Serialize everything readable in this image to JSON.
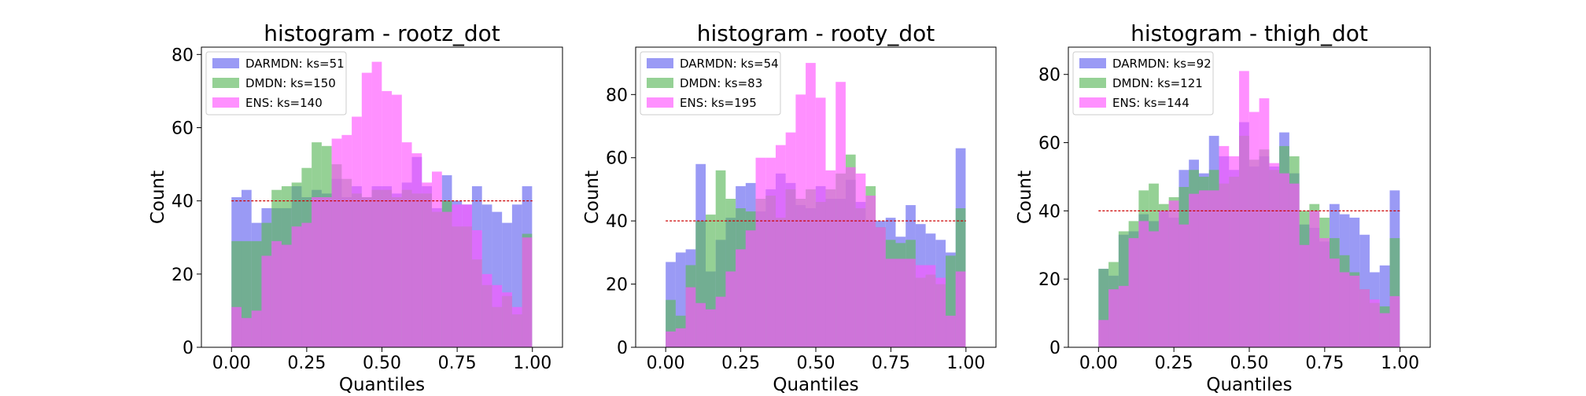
{
  "chart_data": [
    {
      "type": "histogram",
      "title": "histogram - rootz_dot",
      "xlabel": "Quantiles",
      "ylabel": "Count",
      "xlim": [
        -0.1,
        1.1
      ],
      "ylim": [
        0,
        82
      ],
      "xticks": [
        "0.00",
        "0.25",
        "0.50",
        "0.75",
        "1.00"
      ],
      "yticks": [
        "0",
        "20",
        "40",
        "60",
        "80"
      ],
      "legend_position": "upper-left",
      "reference_line": 40,
      "bin_width": 0.0333,
      "series": [
        {
          "name": "DARMDN: ks=51",
          "color": "#6464f0",
          "values": [
            41,
            43,
            34,
            38,
            38,
            38,
            44,
            41,
            43,
            42,
            46,
            41,
            44,
            41,
            44,
            44,
            42,
            45,
            52,
            44,
            38,
            47,
            40,
            39,
            44,
            39,
            37,
            34,
            39,
            44
          ]
        },
        {
          "name": "DMDN: ks=150",
          "color": "#5cb85c",
          "values": [
            29,
            29,
            29,
            34,
            43,
            44,
            45,
            49,
            56,
            55,
            50,
            46,
            42,
            41,
            43,
            43,
            41,
            43,
            42,
            42,
            37,
            40,
            33,
            33,
            24,
            17,
            11,
            14,
            9,
            31
          ]
        },
        {
          "name": "ENS: ks=140",
          "color": "#ff55ff",
          "values": [
            11,
            8,
            10,
            25,
            29,
            28,
            33,
            34,
            41,
            41,
            57,
            58,
            63,
            75,
            78,
            70,
            69,
            56,
            53,
            45,
            48,
            37,
            39,
            39,
            32,
            20,
            17,
            15,
            11,
            30
          ]
        }
      ]
    },
    {
      "type": "histogram",
      "title": "histogram - rooty_dot",
      "xlabel": "Quantiles",
      "ylabel": "Count",
      "xlim": [
        -0.1,
        1.1
      ],
      "ylim": [
        0,
        95
      ],
      "xticks": [
        "0.00",
        "0.25",
        "0.50",
        "0.75",
        "1.00"
      ],
      "yticks": [
        "0",
        "20",
        "40",
        "60",
        "80"
      ],
      "legend_position": "upper-left",
      "reference_line": 40,
      "bin_width": 0.0333,
      "series": [
        {
          "name": "DARMDN: ks=54",
          "color": "#6464f0",
          "values": [
            27,
            30,
            31,
            58,
            24,
            34,
            41,
            51,
            52,
            43,
            50,
            55,
            52,
            45,
            44,
            51,
            47,
            47,
            53,
            46,
            40,
            40,
            41,
            35,
            45,
            39,
            36,
            34,
            30,
            63
          ]
        },
        {
          "name": "DMDN: ks=83",
          "color": "#5cb85c",
          "values": [
            15,
            10,
            26,
            40,
            42,
            56,
            47,
            44,
            43,
            47,
            48,
            41,
            50,
            47,
            50,
            46,
            50,
            55,
            61,
            44,
            51,
            38,
            34,
            33,
            34,
            22,
            23,
            20,
            29,
            44
          ]
        },
        {
          "name": "ENS: ks=195",
          "color": "#ff55ff",
          "values": [
            5,
            6,
            19,
            14,
            12,
            16,
            24,
            31,
            37,
            60,
            60,
            64,
            68,
            80,
            90,
            79,
            56,
            84,
            57,
            55,
            48,
            38,
            28,
            28,
            28,
            26,
            26,
            22,
            10,
            24
          ]
        }
      ]
    },
    {
      "type": "histogram",
      "title": "histogram - thigh_dot",
      "xlabel": "Quantiles",
      "ylabel": "Count",
      "xlim": [
        -0.1,
        1.1
      ],
      "ylim": [
        0,
        88
      ],
      "xticks": [
        "0.00",
        "0.25",
        "0.50",
        "0.75",
        "1.00"
      ],
      "yticks": [
        "0",
        "20",
        "40",
        "60",
        "80"
      ],
      "legend_position": "upper-left",
      "reference_line": 40,
      "bin_width": 0.0333,
      "series": [
        {
          "name": "DARMDN: ks=92",
          "color": "#6464f0",
          "values": [
            23,
            21,
            33,
            34,
            39,
            37,
            40,
            38,
            52,
            55,
            51,
            62,
            56,
            52,
            66,
            53,
            56,
            53,
            63,
            51,
            36,
            35,
            31,
            42,
            39,
            38,
            33,
            22,
            24,
            46
          ]
        },
        {
          "name": "DMDN: ks=121",
          "color": "#5cb85c",
          "values": [
            23,
            25,
            34,
            37,
            46,
            48,
            42,
            44,
            47,
            52,
            50,
            52,
            48,
            50,
            62,
            55,
            58,
            52,
            59,
            56,
            40,
            42,
            38,
            32,
            27,
            22,
            17,
            13,
            12,
            32
          ]
        },
        {
          "name": "ENS: ks=144",
          "color": "#ff55ff",
          "values": [
            8,
            17,
            18,
            32,
            37,
            34,
            40,
            43,
            36,
            45,
            46,
            46,
            59,
            56,
            81,
            69,
            73,
            54,
            51,
            48,
            30,
            40,
            32,
            26,
            22,
            21,
            17,
            14,
            10,
            15
          ]
        }
      ]
    }
  ]
}
